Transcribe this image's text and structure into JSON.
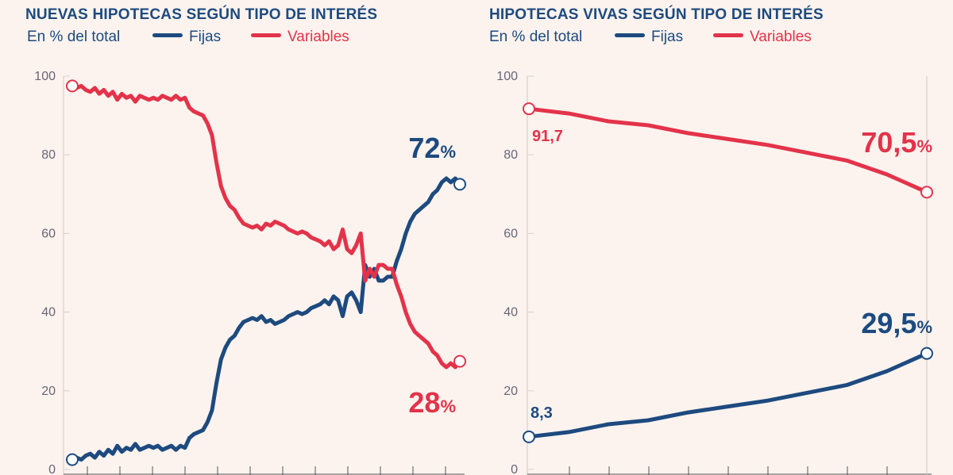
{
  "colors": {
    "fixed": "#1d4a7f",
    "variable": "#e3334a",
    "background": "#fcf3ee"
  },
  "chart_data": [
    {
      "type": "line",
      "title": "NUEVAS HIPOTECAS SEGÚN TIPO DE INTERÉS",
      "subtitle": "En % del total",
      "ylim": [
        0,
        100
      ],
      "yticks": [
        0,
        20,
        40,
        60,
        80,
        100
      ],
      "grid": true,
      "legend": "top",
      "series": [
        {
          "name": "Fijas",
          "end_label": "72",
          "end_unit": "%",
          "values": [
            2.5,
            3,
            2.5,
            3.5,
            4,
            3,
            4.5,
            3.5,
            5,
            4,
            6,
            4.5,
            5.5,
            5,
            6.5,
            5,
            5.5,
            6,
            5.5,
            6,
            5,
            5.5,
            6,
            5,
            6,
            5.5,
            8,
            9,
            9.5,
            10,
            12,
            15,
            22,
            28,
            31,
            33,
            34,
            36,
            37.5,
            38,
            38.5,
            38,
            39,
            37.5,
            38,
            37,
            37.5,
            38,
            39,
            39.5,
            40,
            39.5,
            40,
            41,
            41.5,
            42,
            43,
            42,
            44,
            43,
            39,
            44,
            45,
            43,
            40,
            52,
            49,
            51,
            48,
            48,
            49,
            49,
            53,
            56,
            60,
            63,
            65,
            66,
            67,
            68,
            70,
            71,
            73,
            74,
            73,
            74,
            72.5
          ]
        },
        {
          "name": "Variables",
          "end_label": "28",
          "end_unit": "%",
          "values": [
            97.5,
            97,
            97.5,
            96.5,
            96,
            97,
            95.5,
            96.5,
            95,
            96,
            94,
            95.5,
            94.5,
            95,
            93.5,
            95,
            94.5,
            94,
            94.5,
            94,
            95,
            94.5,
            94,
            95,
            94,
            94.5,
            92,
            91,
            90.5,
            90,
            88,
            85,
            78,
            72,
            69,
            67,
            66,
            64,
            62.5,
            62,
            61.5,
            62,
            61,
            62.5,
            62,
            63,
            62.5,
            62,
            61,
            60.5,
            60,
            60.5,
            60,
            59,
            58.5,
            58,
            57,
            58,
            56,
            57,
            61,
            56,
            55,
            57,
            60,
            48,
            51,
            49,
            52,
            52,
            51,
            51,
            47,
            44,
            40,
            37,
            35,
            34,
            33,
            32,
            30,
            29,
            27,
            26,
            27,
            26,
            27.5
          ]
        }
      ]
    },
    {
      "type": "line",
      "title": "HIPOTECAS VIVAS SEGÚN TIPO DE INTERÉS",
      "subtitle": "En % del total",
      "ylim": [
        0,
        100
      ],
      "yticks": [
        0,
        20,
        40,
        60,
        80,
        100
      ],
      "grid": true,
      "legend": "top",
      "series": [
        {
          "name": "Fijas",
          "start_label": "8,3",
          "end_label": "29,5",
          "end_unit": "%",
          "values": [
            8.3,
            9.5,
            11.5,
            12.5,
            14.5,
            16,
            17.5,
            19.5,
            21.5,
            25,
            29.5
          ]
        },
        {
          "name": "Variables",
          "start_label": "91,7",
          "end_label": "70,5",
          "end_unit": "%",
          "values": [
            91.7,
            90.5,
            88.5,
            87.5,
            85.5,
            84,
            82.5,
            80.5,
            78.5,
            75,
            70.5
          ]
        }
      ]
    }
  ]
}
